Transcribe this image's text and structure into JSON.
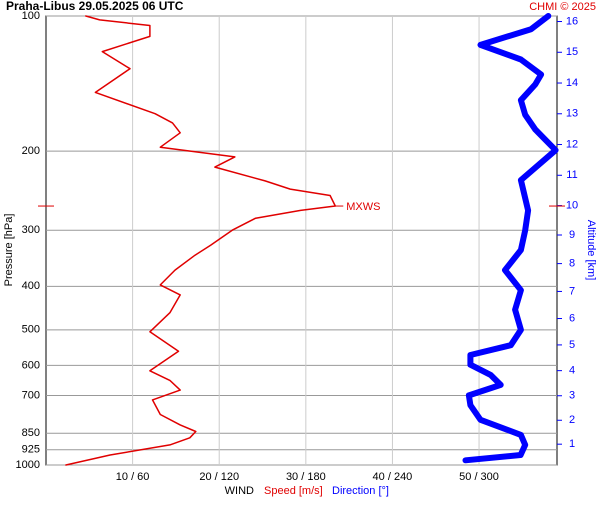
{
  "chart_data": {
    "type": "profile",
    "title": "Praha-Libus   29.05.2025 06 UTC",
    "credit": "CHMI © 2025",
    "ylabel": "Pressure [hPa]",
    "y2label": "Altitude [km]",
    "xlabel": "WIND",
    "xlabel_speed": "Speed [m/s]",
    "xlabel_direction": "Direction [°]",
    "ylim": [
      100,
      1000
    ],
    "log_y": true,
    "yticks": [
      100,
      200,
      300,
      400,
      500,
      600,
      700,
      850,
      925,
      1000
    ],
    "xlim": [
      0,
      59
    ],
    "x2lim": [
      0,
      354
    ],
    "xticks": [
      {
        "value": 10,
        "label": "10 / 60"
      },
      {
        "value": 20,
        "label": "20 / 120"
      },
      {
        "value": 30,
        "label": "30 / 180"
      },
      {
        "value": 40,
        "label": "40 / 240"
      },
      {
        "value": 50,
        "label": "50 / 300"
      }
    ],
    "y2ticks": [
      1,
      2,
      3,
      4,
      5,
      6,
      7,
      8,
      9,
      10,
      11,
      12,
      13,
      14,
      15,
      16
    ],
    "grid": true,
    "max_wind": {
      "label": "MXWS",
      "pressure": 265,
      "value": 33.4
    },
    "series": [
      {
        "name": "Speed [m/s]",
        "color": "#e00000",
        "axis": "x",
        "pressure": [
          1000,
          950,
          902,
          870,
          842,
          814,
          772,
          716,
          681,
          648,
          617,
          558,
          505,
          458,
          418,
          397,
          368,
          341,
          324,
          300,
          282,
          271,
          265,
          251,
          243,
          233,
          217,
          206,
          196,
          182,
          173,
          165,
          148,
          131,
          120,
          111,
          105,
          102,
          100
        ],
        "values": [
          2.3,
          7.4,
          14.3,
          16.6,
          17.3,
          15.5,
          13.2,
          12.3,
          15.5,
          14.3,
          12.0,
          15.3,
          12.0,
          14.3,
          15.5,
          13.2,
          14.9,
          17.2,
          19.0,
          21.5,
          24.2,
          29.4,
          33.4,
          32.8,
          28.2,
          25.3,
          19.5,
          21.8,
          13.2,
          15.5,
          14.6,
          12.6,
          5.7,
          9.7,
          6.5,
          12.0,
          12.0,
          6.2,
          4.6
        ]
      },
      {
        "name": "Direction [°]",
        "color": "#0000ff",
        "axis": "x2",
        "pressure": [
          976,
          950,
          902,
          857,
          793,
          736,
          700,
          663,
          630,
          598,
          569,
          541,
          500,
          451,
          408,
          368,
          332,
          300,
          271,
          232,
          199,
          179,
          166,
          154,
          142,
          135,
          125,
          116,
          107,
          100
        ],
        "values": [
          290.6,
          328.8,
          332,
          329,
          301,
          294,
          293,
          315,
          308,
          294,
          294,
          322,
          329,
          325,
          329,
          318,
          329,
          332,
          334,
          329,
          353,
          339,
          332,
          329,
          339,
          343,
          329,
          301,
          336,
          348
        ]
      }
    ]
  }
}
